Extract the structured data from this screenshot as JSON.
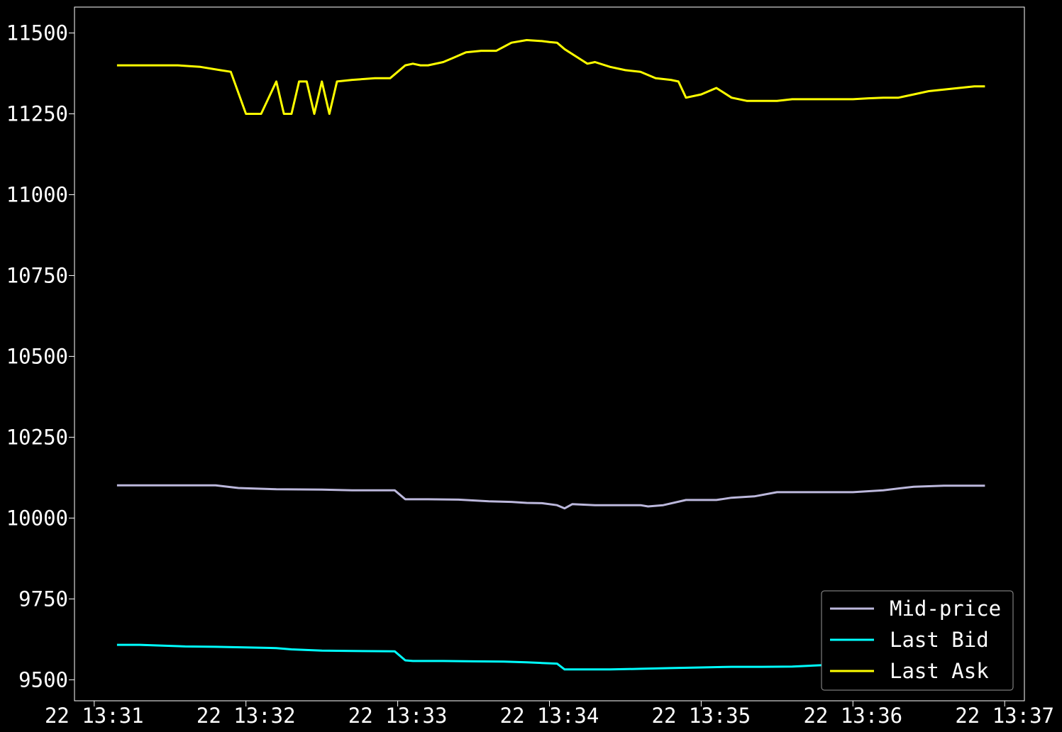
{
  "chart_data": {
    "type": "line",
    "title": "",
    "xlabel": "",
    "ylabel": "",
    "x_start": "13:31",
    "x_tick_labels": [
      "22 13:31",
      "22 13:32",
      "22 13:33",
      "22 13:34",
      "22 13:35",
      "22 13:36",
      "22 13:37"
    ],
    "x_ticks_min": [
      0,
      1,
      2,
      3,
      4,
      5,
      6
    ],
    "xlim_min": [
      -0.13,
      6.13
    ],
    "y_ticks": [
      9500,
      9750,
      10000,
      10250,
      10500,
      10750,
      11000,
      11250,
      11500
    ],
    "y_tick_labels": [
      "9500",
      "9750",
      "10000",
      "10250",
      "10500",
      "10750",
      "11000",
      "11250",
      "11500"
    ],
    "ylim": [
      9435,
      11580
    ],
    "grid": false,
    "legend_position": "lower-right",
    "background": "#000000",
    "series": [
      {
        "name": "Mid-price",
        "color": "#bcb8dc",
        "x_min": [
          0.15,
          0.6,
          0.8,
          0.95,
          1.0,
          1.2,
          1.5,
          1.7,
          1.98,
          2.05,
          2.1,
          2.2,
          2.4,
          2.6,
          2.75,
          2.85,
          2.95,
          3.05,
          3.1,
          3.15,
          3.3,
          3.45,
          3.6,
          3.65,
          3.75,
          3.9,
          4.0,
          4.1,
          4.2,
          4.35,
          4.5,
          4.6,
          4.8,
          5.0,
          5.2,
          5.4,
          5.6,
          5.8,
          5.87
        ],
        "values": [
          10101,
          10101,
          10101,
          10093,
          10092,
          10089,
          10088,
          10086,
          10086,
          10058,
          10058,
          10058,
          10057,
          10052,
          10050,
          10047,
          10046,
          10040,
          10030,
          10043,
          10040,
          10040,
          10040,
          10036,
          10040,
          10056,
          10056,
          10056,
          10063,
          10067,
          10080,
          10080,
          10080,
          10080,
          10086,
          10097,
          10100,
          10100,
          10100
        ]
      },
      {
        "name": "Last Bid",
        "color": "#00ffff",
        "x_min": [
          0.15,
          0.3,
          0.6,
          0.8,
          1.0,
          1.2,
          1.3,
          1.5,
          1.7,
          1.98,
          2.05,
          2.1,
          2.3,
          2.5,
          2.7,
          2.85,
          2.95,
          3.05,
          3.1,
          3.2,
          3.4,
          3.6,
          3.8,
          4.0,
          4.2,
          4.4,
          4.6,
          4.8,
          5.0,
          5.2,
          5.4,
          5.6,
          5.8,
          5.87
        ],
        "values": [
          9608,
          9608,
          9603,
          9602,
          9600,
          9598,
          9594,
          9590,
          9589,
          9588,
          9560,
          9558,
          9558,
          9557,
          9556,
          9554,
          9552,
          9550,
          9532,
          9532,
          9532,
          9534,
          9536,
          9538,
          9540,
          9540,
          9541,
          9545,
          9548,
          9546,
          9546,
          9548,
          9550,
          9550
        ]
      },
      {
        "name": "Last Ask",
        "color": "#ffff00",
        "x_min": [
          0.15,
          0.55,
          0.7,
          0.83,
          0.9,
          1.0,
          1.1,
          1.2,
          1.25,
          1.3,
          1.35,
          1.4,
          1.45,
          1.5,
          1.55,
          1.6,
          1.7,
          1.85,
          1.95,
          2.05,
          2.1,
          2.15,
          2.2,
          2.3,
          2.35,
          2.45,
          2.55,
          2.65,
          2.75,
          2.85,
          2.95,
          3.0,
          3.05,
          3.1,
          3.2,
          3.25,
          3.3,
          3.4,
          3.5,
          3.6,
          3.65,
          3.7,
          3.8,
          3.85,
          3.9,
          4.0,
          4.1,
          4.2,
          4.3,
          4.4,
          4.5,
          4.6,
          4.7,
          4.8,
          4.9,
          5.0,
          5.1,
          5.2,
          5.3,
          5.4,
          5.5,
          5.6,
          5.7,
          5.8,
          5.87
        ],
        "values": [
          11400,
          11400,
          11395,
          11385,
          11380,
          11250,
          11250,
          11350,
          11250,
          11250,
          11350,
          11350,
          11250,
          11350,
          11250,
          11350,
          11355,
          11360,
          11360,
          11400,
          11405,
          11400,
          11400,
          11410,
          11420,
          11440,
          11445,
          11445,
          11470,
          11478,
          11475,
          11472,
          11470,
          11450,
          11420,
          11405,
          11410,
          11395,
          11385,
          11380,
          11370,
          11360,
          11355,
          11350,
          11300,
          11310,
          11330,
          11300,
          11290,
          11290,
          11290,
          11295,
          11295,
          11295,
          11295,
          11295,
          11298,
          11300,
          11300,
          11310,
          11320,
          11325,
          11330,
          11335,
          11335
        ]
      }
    ]
  }
}
